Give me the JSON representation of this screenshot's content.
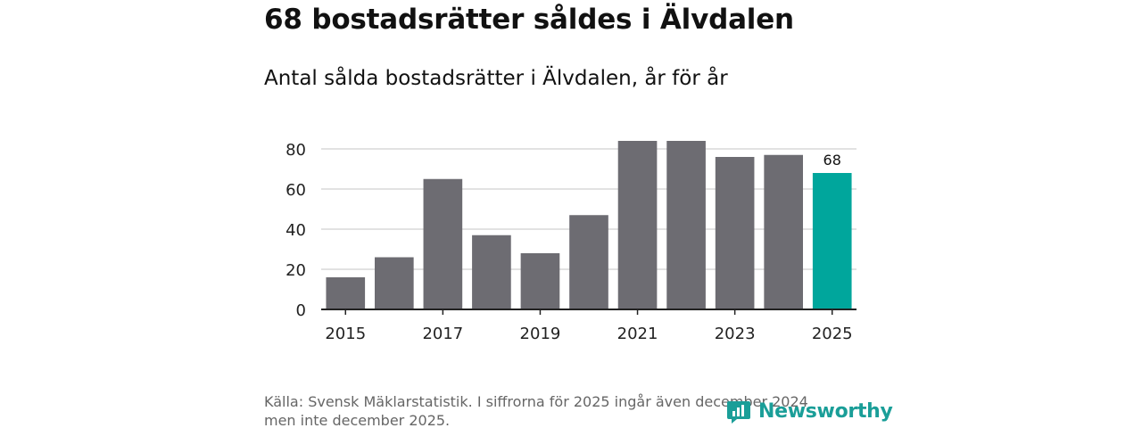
{
  "title": "68 bostadsrätter såldes i Älvdalen",
  "subtitle": "Antal sålda bostadsrätter i Älvdalen, år för år",
  "source_line1": "Källa: Svensk Mäklarstatistik. I siffrorna för 2025 ingår även december 2024",
  "source_line2": "men inte december 2025.",
  "brand": "Newsworthy",
  "colors": {
    "bar": "#6d6c72",
    "highlight": "#00a69c",
    "grid": "#d9d9d9",
    "axis": "#222222",
    "brand": "#1a9e98"
  },
  "chart_data": {
    "type": "bar",
    "categories": [
      "2015",
      "2016",
      "2017",
      "2018",
      "2019",
      "2020",
      "2021",
      "2022",
      "2023",
      "2024",
      "2025"
    ],
    "values": [
      16,
      26,
      65,
      37,
      28,
      47,
      84,
      84,
      76,
      77,
      68
    ],
    "highlight_index": 10,
    "data_labels": [
      {
        "category": "2025",
        "text": "68"
      }
    ],
    "x_tick_labels": [
      "2015",
      "2017",
      "2019",
      "2021",
      "2023",
      "2025"
    ],
    "y_tick_labels": [
      "0",
      "20",
      "40",
      "60",
      "80"
    ],
    "ylim": [
      0,
      84
    ],
    "grid": true,
    "title": "68 bostadsrätter såldes i Älvdalen",
    "xlabel": "",
    "ylabel": ""
  }
}
